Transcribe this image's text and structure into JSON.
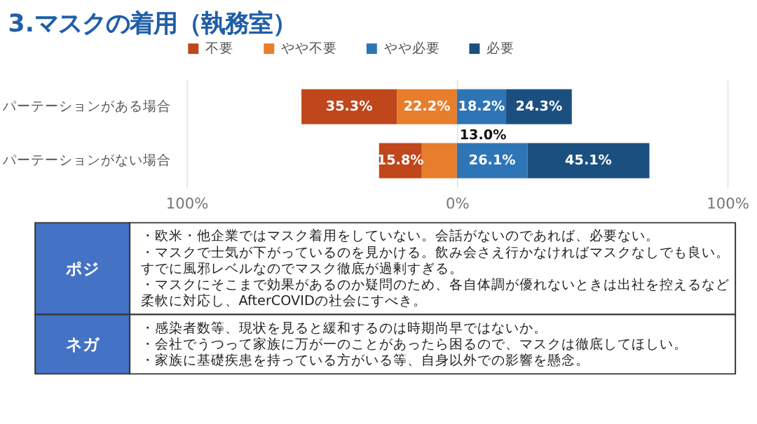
{
  "chart_data": {
    "type": "bar",
    "orientation": "horizontal",
    "title": "3.マスクの着用（執務室）",
    "categories": [
      "パーテーションがある場合",
      "パーテーションがない場合"
    ],
    "series": [
      {
        "name": "やや不要",
        "color": "#e87d2b",
        "values": [
          22.2,
          13.0
        ],
        "base": [
          -22.2,
          -13.0
        ],
        "value_labels": [
          "22.2%",
          "13.0%"
        ]
      },
      {
        "name": "不要",
        "color": "#c0461b",
        "values": [
          35.3,
          15.8
        ],
        "base": [
          -57.5,
          -28.8
        ],
        "value_labels": [
          "35.3%",
          "15.8%"
        ]
      },
      {
        "name": "やや必要",
        "color": "#2e75b6",
        "values": [
          18.2,
          26.1
        ],
        "base": [
          0,
          0
        ],
        "value_labels": [
          "18.2%",
          "26.1%"
        ]
      },
      {
        "name": "必要",
        "color": "#1b4f80",
        "values": [
          24.3,
          45.1
        ],
        "base": [
          18.2,
          26.1
        ],
        "value_labels": [
          "24.3%",
          "45.1%"
        ]
      }
    ],
    "xlim": [
      -100,
      100
    ],
    "xticks": [
      {
        "value": -100,
        "label": "100%"
      },
      {
        "value": 0,
        "label": "0%"
      },
      {
        "value": 100,
        "label": "100%"
      }
    ],
    "grid": "x",
    "legend": "top left",
    "annotations": [
      "ポジ",
      "・欧米・他企業ではマスク着用をしていない。会話がないのであれば、必要ない。・マスクで士気が下がっているのを見かける。飲み会さえ行かなければマスクなしでも良い。すでに風邪レベルなのでマスク徹底が過剰すぎる。・マスクにそこまで効果があるのか疑問のため、各自体調が優れないときは出社を控えるなど柔軟に対応し、AfterCOVIDの社会にすべき。",
      "ネガ",
      "・感染者数等、現状を見ると緩和するのは時期尚早ではないか。・会社でうつって家族に万が一のことがあったら困るので、マスクは徹底してほしい。・家族に基礎疾患を持っている方がいる等、自身以外での影響を懸念。"
    ]
  }
}
